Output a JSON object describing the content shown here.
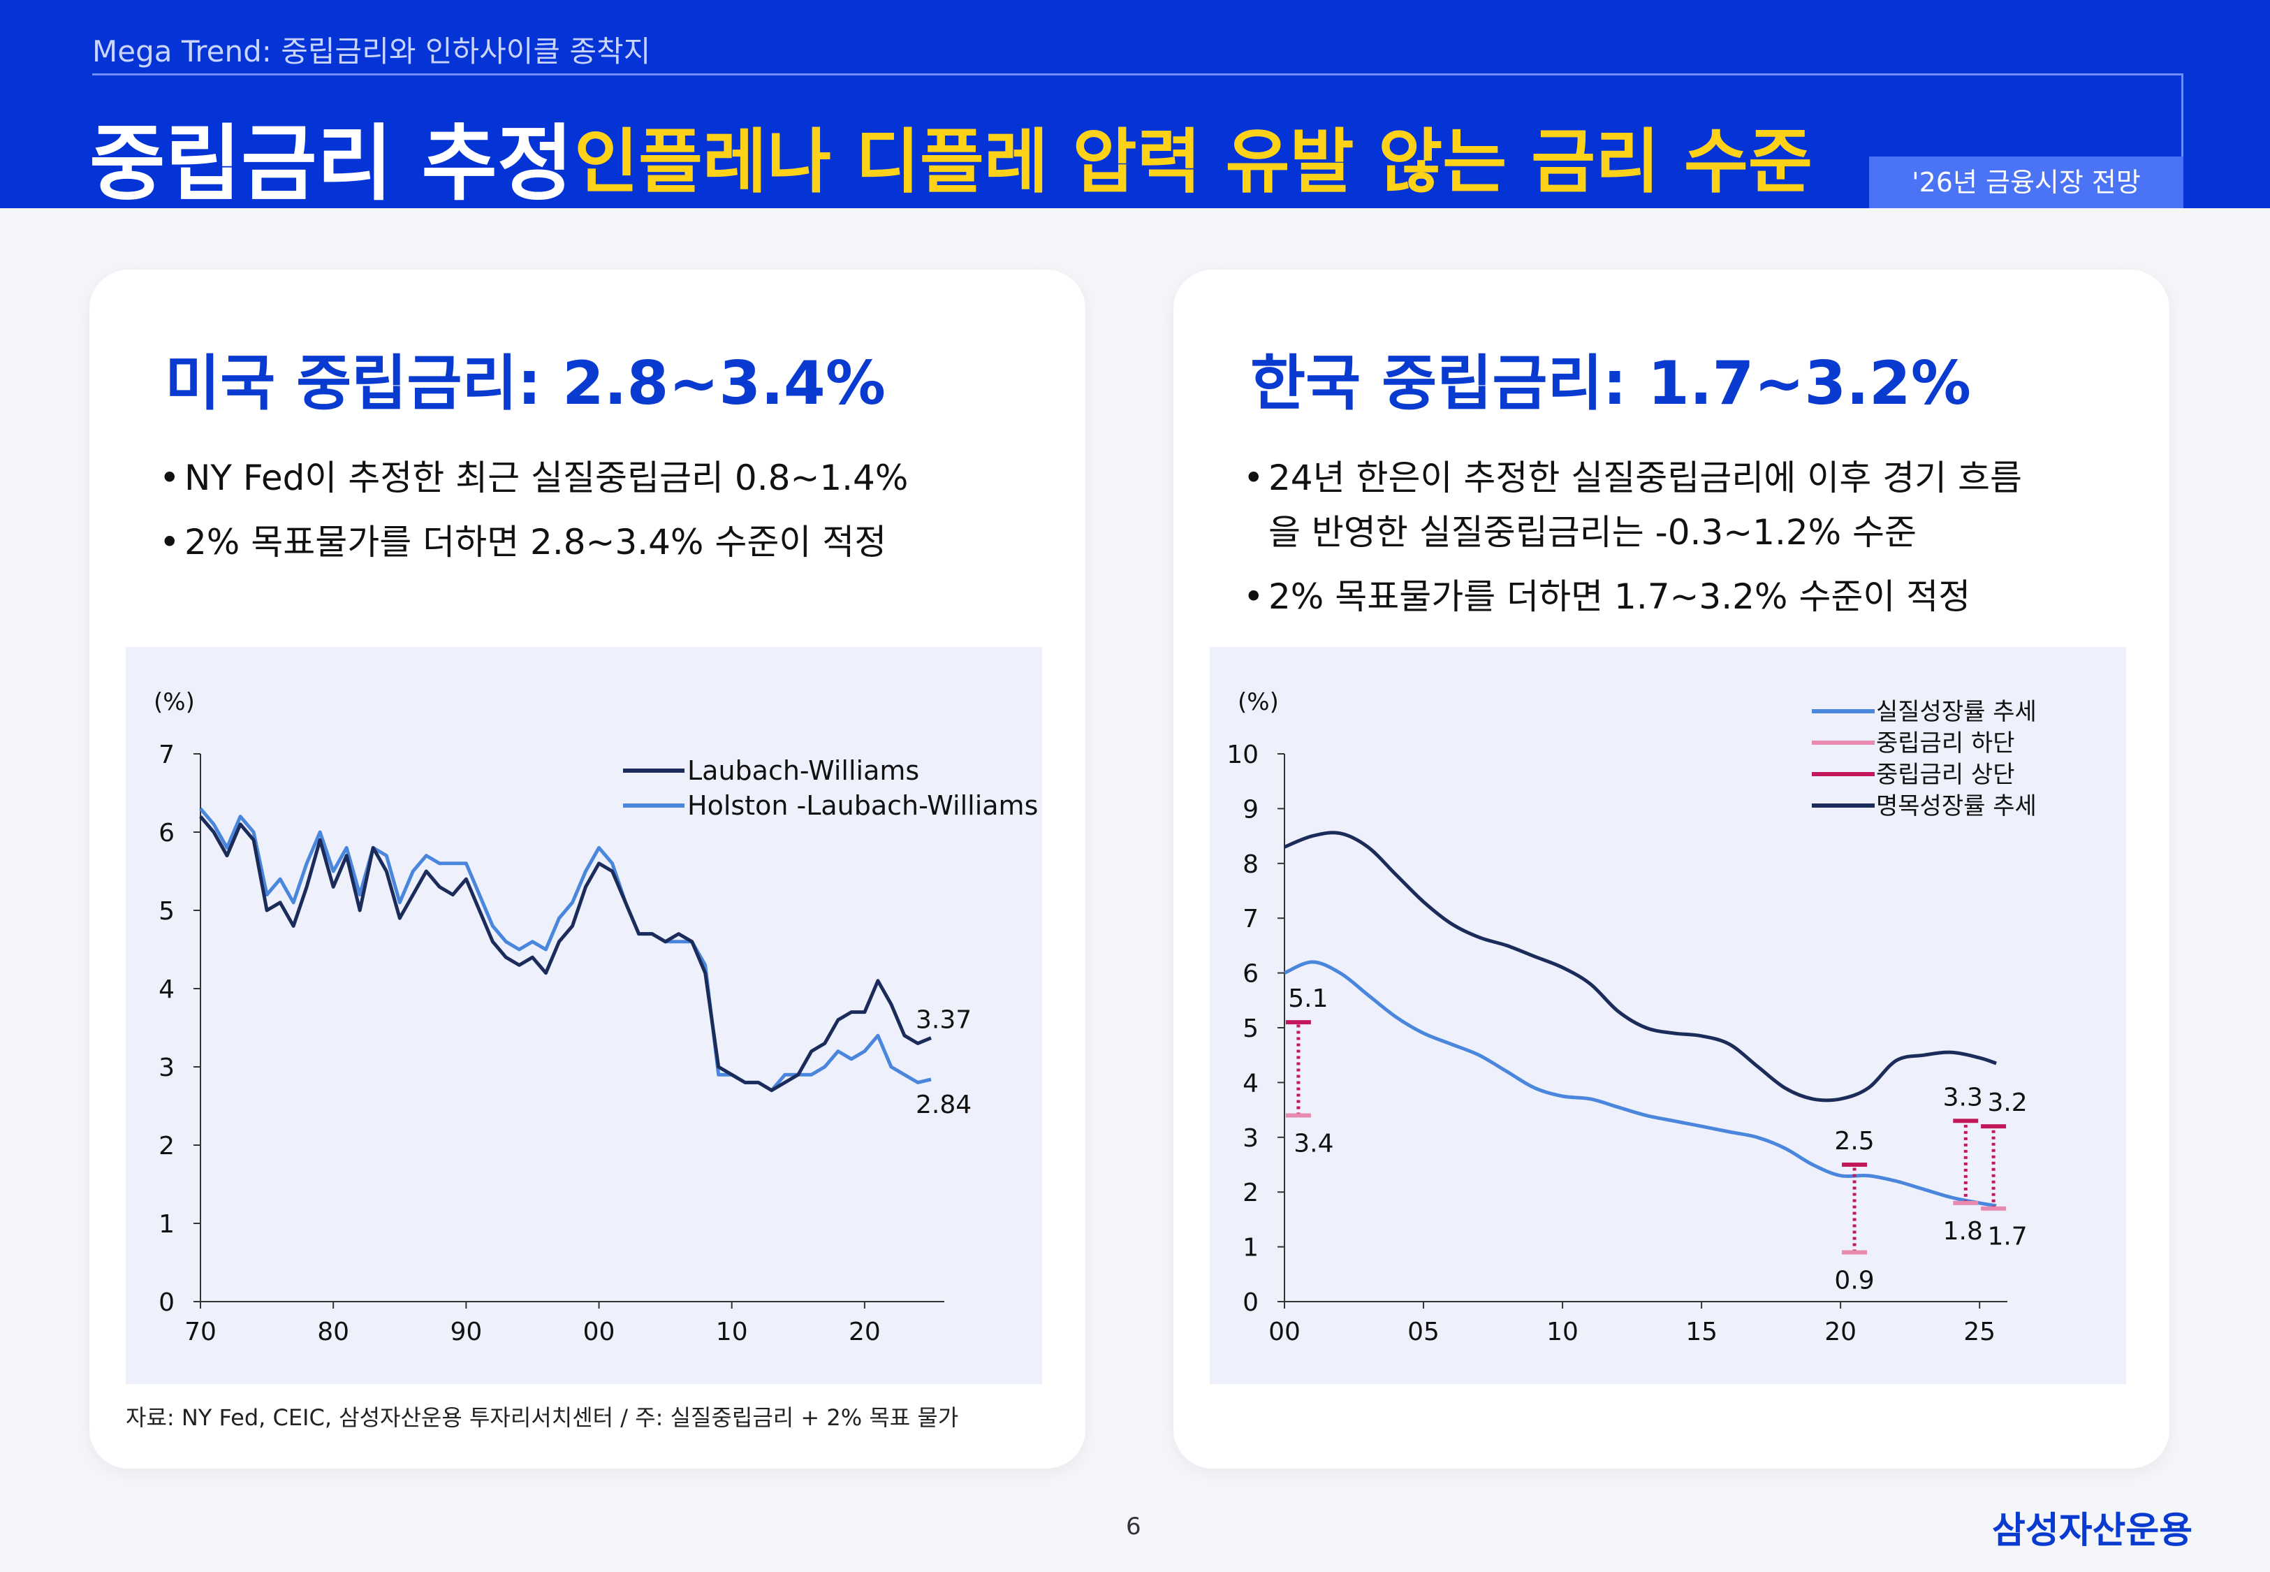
{
  "header": {
    "super": "Mega Trend: 중립금리와 인하사이클 종착지",
    "title": "중립금리 추정",
    "subtitle": "인플레나 디플레 압력 유발 않는 금리 수준",
    "badge": "'26년 금융시장 전망"
  },
  "left": {
    "title": "미국 중립금리: 2.8~3.4%",
    "bullets": [
      "NY Fed이 추정한 최근 실질중립금리 0.8~1.4%",
      "2% 목표물가를 더하면 2.8~3.4% 수준이 적정"
    ],
    "source": "자료: NY Fed, CEIC, 삼성자산운용 투자리서치센터 / 주: 실질중립금리 + 2% 목표 물가"
  },
  "right": {
    "title": "한국 중립금리: 1.7~3.2%",
    "bullets": [
      "24년 한은이 추정한 실질중립금리에 이후 경기 흐름",
      "을 반영한 실질중립금리는 -0.3~1.2% 수준",
      "2% 목표물가를 더하면 1.7~3.2% 수준이 적정"
    ]
  },
  "footer": {
    "page": "6",
    "logo": "삼성자산운용"
  },
  "colors": {
    "navy": "#1b2b5a",
    "blue": "#4a86db",
    "pink": "#e88ab0",
    "magenta": "#c2185b",
    "brand": "#0a3bd1",
    "accent": "#ffd21a"
  },
  "chart_data": [
    {
      "type": "line",
      "unit": "(%)",
      "ylim": [
        0,
        7
      ],
      "yticks": [
        "0",
        "1",
        "2",
        "3",
        "4",
        "5",
        "6",
        "7"
      ],
      "xlim": [
        1970,
        2026
      ],
      "xticks": [
        {
          "x": 1970,
          "label": "70"
        },
        {
          "x": 1980,
          "label": "80"
        },
        {
          "x": 1990,
          "label": "90"
        },
        {
          "x": 2000,
          "label": "00"
        },
        {
          "x": 2010,
          "label": "10"
        },
        {
          "x": 2020,
          "label": "20"
        }
      ],
      "legend_position": "top-right",
      "series": [
        {
          "name": "Laubach-Williams",
          "color": "#1b2b5a",
          "points": [
            [
              1970,
              6.2
            ],
            [
              1971,
              6.0
            ],
            [
              1972,
              5.7
            ],
            [
              1973,
              6.1
            ],
            [
              1974,
              5.9
            ],
            [
              1975,
              5.0
            ],
            [
              1976,
              5.1
            ],
            [
              1977,
              4.8
            ],
            [
              1978,
              5.3
            ],
            [
              1979,
              5.9
            ],
            [
              1980,
              5.3
            ],
            [
              1981,
              5.7
            ],
            [
              1982,
              5.0
            ],
            [
              1983,
              5.8
            ],
            [
              1984,
              5.5
            ],
            [
              1985,
              4.9
            ],
            [
              1986,
              5.2
            ],
            [
              1987,
              5.5
            ],
            [
              1988,
              5.3
            ],
            [
              1989,
              5.2
            ],
            [
              1990,
              5.4
            ],
            [
              1991,
              5.0
            ],
            [
              1992,
              4.6
            ],
            [
              1993,
              4.4
            ],
            [
              1994,
              4.3
            ],
            [
              1995,
              4.4
            ],
            [
              1996,
              4.2
            ],
            [
              1997,
              4.6
            ],
            [
              1998,
              4.8
            ],
            [
              1999,
              5.3
            ],
            [
              2000,
              5.6
            ],
            [
              2001,
              5.5
            ],
            [
              2002,
              5.1
            ],
            [
              2003,
              4.7
            ],
            [
              2004,
              4.7
            ],
            [
              2005,
              4.6
            ],
            [
              2006,
              4.7
            ],
            [
              2007,
              4.6
            ],
            [
              2008,
              4.2
            ],
            [
              2009,
              3.0
            ],
            [
              2010,
              2.9
            ],
            [
              2011,
              2.8
            ],
            [
              2012,
              2.8
            ],
            [
              2013,
              2.7
            ],
            [
              2014,
              2.8
            ],
            [
              2015,
              2.9
            ],
            [
              2016,
              3.2
            ],
            [
              2017,
              3.3
            ],
            [
              2018,
              3.6
            ],
            [
              2019,
              3.7
            ],
            [
              2020,
              3.7
            ],
            [
              2021,
              4.1
            ],
            [
              2022,
              3.8
            ],
            [
              2023,
              3.4
            ],
            [
              2024,
              3.3
            ],
            [
              2025,
              3.37
            ]
          ],
          "end_label": "3.37"
        },
        {
          "name": "Holston -Laubach-Williams",
          "color": "#4a86db",
          "points": [
            [
              1970,
              6.3
            ],
            [
              1971,
              6.1
            ],
            [
              1972,
              5.8
            ],
            [
              1973,
              6.2
            ],
            [
              1974,
              6.0
            ],
            [
              1975,
              5.2
            ],
            [
              1976,
              5.4
            ],
            [
              1977,
              5.1
            ],
            [
              1978,
              5.6
            ],
            [
              1979,
              6.0
            ],
            [
              1980,
              5.5
            ],
            [
              1981,
              5.8
            ],
            [
              1982,
              5.2
            ],
            [
              1983,
              5.8
            ],
            [
              1984,
              5.7
            ],
            [
              1985,
              5.1
            ],
            [
              1986,
              5.5
            ],
            [
              1987,
              5.7
            ],
            [
              1988,
              5.6
            ],
            [
              1989,
              5.6
            ],
            [
              1990,
              5.6
            ],
            [
              1991,
              5.2
            ],
            [
              1992,
              4.8
            ],
            [
              1993,
              4.6
            ],
            [
              1994,
              4.5
            ],
            [
              1995,
              4.6
            ],
            [
              1996,
              4.5
            ],
            [
              1997,
              4.9
            ],
            [
              1998,
              5.1
            ],
            [
              1999,
              5.5
            ],
            [
              2000,
              5.8
            ],
            [
              2001,
              5.6
            ],
            [
              2002,
              5.1
            ],
            [
              2003,
              4.7
            ],
            [
              2004,
              4.7
            ],
            [
              2005,
              4.6
            ],
            [
              2006,
              4.6
            ],
            [
              2007,
              4.6
            ],
            [
              2008,
              4.3
            ],
            [
              2009,
              2.9
            ],
            [
              2010,
              2.9
            ],
            [
              2011,
              2.8
            ],
            [
              2012,
              2.8
            ],
            [
              2013,
              2.7
            ],
            [
              2014,
              2.9
            ],
            [
              2015,
              2.9
            ],
            [
              2016,
              2.9
            ],
            [
              2017,
              3.0
            ],
            [
              2018,
              3.2
            ],
            [
              2019,
              3.1
            ],
            [
              2020,
              3.2
            ],
            [
              2021,
              3.4
            ],
            [
              2022,
              3.0
            ],
            [
              2023,
              2.9
            ],
            [
              2024,
              2.8
            ],
            [
              2025,
              2.84
            ]
          ],
          "end_label": "2.84"
        }
      ]
    },
    {
      "type": "line",
      "unit": "(%)",
      "ylim": [
        0,
        10
      ],
      "yticks": [
        "0",
        "1",
        "2",
        "3",
        "4",
        "5",
        "6",
        "7",
        "8",
        "9",
        "10"
      ],
      "xlim": [
        2000,
        2026
      ],
      "xticks": [
        {
          "x": 2000,
          "label": "00"
        },
        {
          "x": 2005,
          "label": "05"
        },
        {
          "x": 2010,
          "label": "10"
        },
        {
          "x": 2015,
          "label": "15"
        },
        {
          "x": 2020,
          "label": "20"
        },
        {
          "x": 2025,
          "label": "25"
        }
      ],
      "legend_position": "top-right",
      "legend": [
        "실질성장률 추세",
        "중립금리 하단",
        "중립금리 상단",
        "명목성장률 추세"
      ],
      "series": [
        {
          "name": "실질성장률 추세",
          "color": "#4a86db",
          "points": [
            [
              2000,
              6.0
            ],
            [
              2001,
              6.2
            ],
            [
              2002,
              6.0
            ],
            [
              2003,
              5.6
            ],
            [
              2004,
              5.2
            ],
            [
              2005,
              4.9
            ],
            [
              2006,
              4.7
            ],
            [
              2007,
              4.5
            ],
            [
              2008,
              4.2
            ],
            [
              2009,
              3.9
            ],
            [
              2010,
              3.75
            ],
            [
              2011,
              3.7
            ],
            [
              2012,
              3.55
            ],
            [
              2013,
              3.4
            ],
            [
              2014,
              3.3
            ],
            [
              2015,
              3.2
            ],
            [
              2016,
              3.1
            ],
            [
              2017,
              3.0
            ],
            [
              2018,
              2.8
            ],
            [
              2019,
              2.5
            ],
            [
              2020,
              2.3
            ],
            [
              2021,
              2.3
            ],
            [
              2022,
              2.2
            ],
            [
              2023,
              2.05
            ],
            [
              2024,
              1.9
            ],
            [
              2025,
              1.8
            ],
            [
              2025.6,
              1.75
            ]
          ]
        },
        {
          "name": "명목성장률 추세",
          "color": "#1b2b5a",
          "points": [
            [
              2000,
              8.3
            ],
            [
              2001,
              8.5
            ],
            [
              2002,
              8.55
            ],
            [
              2003,
              8.3
            ],
            [
              2004,
              7.8
            ],
            [
              2005,
              7.3
            ],
            [
              2006,
              6.9
            ],
            [
              2007,
              6.65
            ],
            [
              2008,
              6.5
            ],
            [
              2009,
              6.3
            ],
            [
              2010,
              6.1
            ],
            [
              2011,
              5.8
            ],
            [
              2012,
              5.3
            ],
            [
              2013,
              5.0
            ],
            [
              2014,
              4.9
            ],
            [
              2015,
              4.85
            ],
            [
              2016,
              4.7
            ],
            [
              2017,
              4.3
            ],
            [
              2018,
              3.9
            ],
            [
              2019,
              3.7
            ],
            [
              2020,
              3.7
            ],
            [
              2021,
              3.9
            ],
            [
              2022,
              4.4
            ],
            [
              2023,
              4.5
            ],
            [
              2024,
              4.55
            ],
            [
              2025,
              4.45
            ],
            [
              2025.6,
              4.35
            ]
          ]
        }
      ],
      "ranges": [
        {
          "x": 2000.5,
          "low": 3.4,
          "high": 5.1,
          "low_label": "3.4",
          "high_label": "5.1"
        },
        {
          "x": 2020.5,
          "low": 0.9,
          "high": 2.5,
          "low_label": "0.9",
          "high_label": "2.5"
        },
        {
          "x": 2024.5,
          "low": 1.8,
          "high": 3.3,
          "low_label": "1.8",
          "high_label": "3.3"
        },
        {
          "x": 2025.5,
          "low": 1.7,
          "high": 3.2,
          "low_label": "1.7",
          "high_label": "3.2"
        }
      ]
    }
  ]
}
